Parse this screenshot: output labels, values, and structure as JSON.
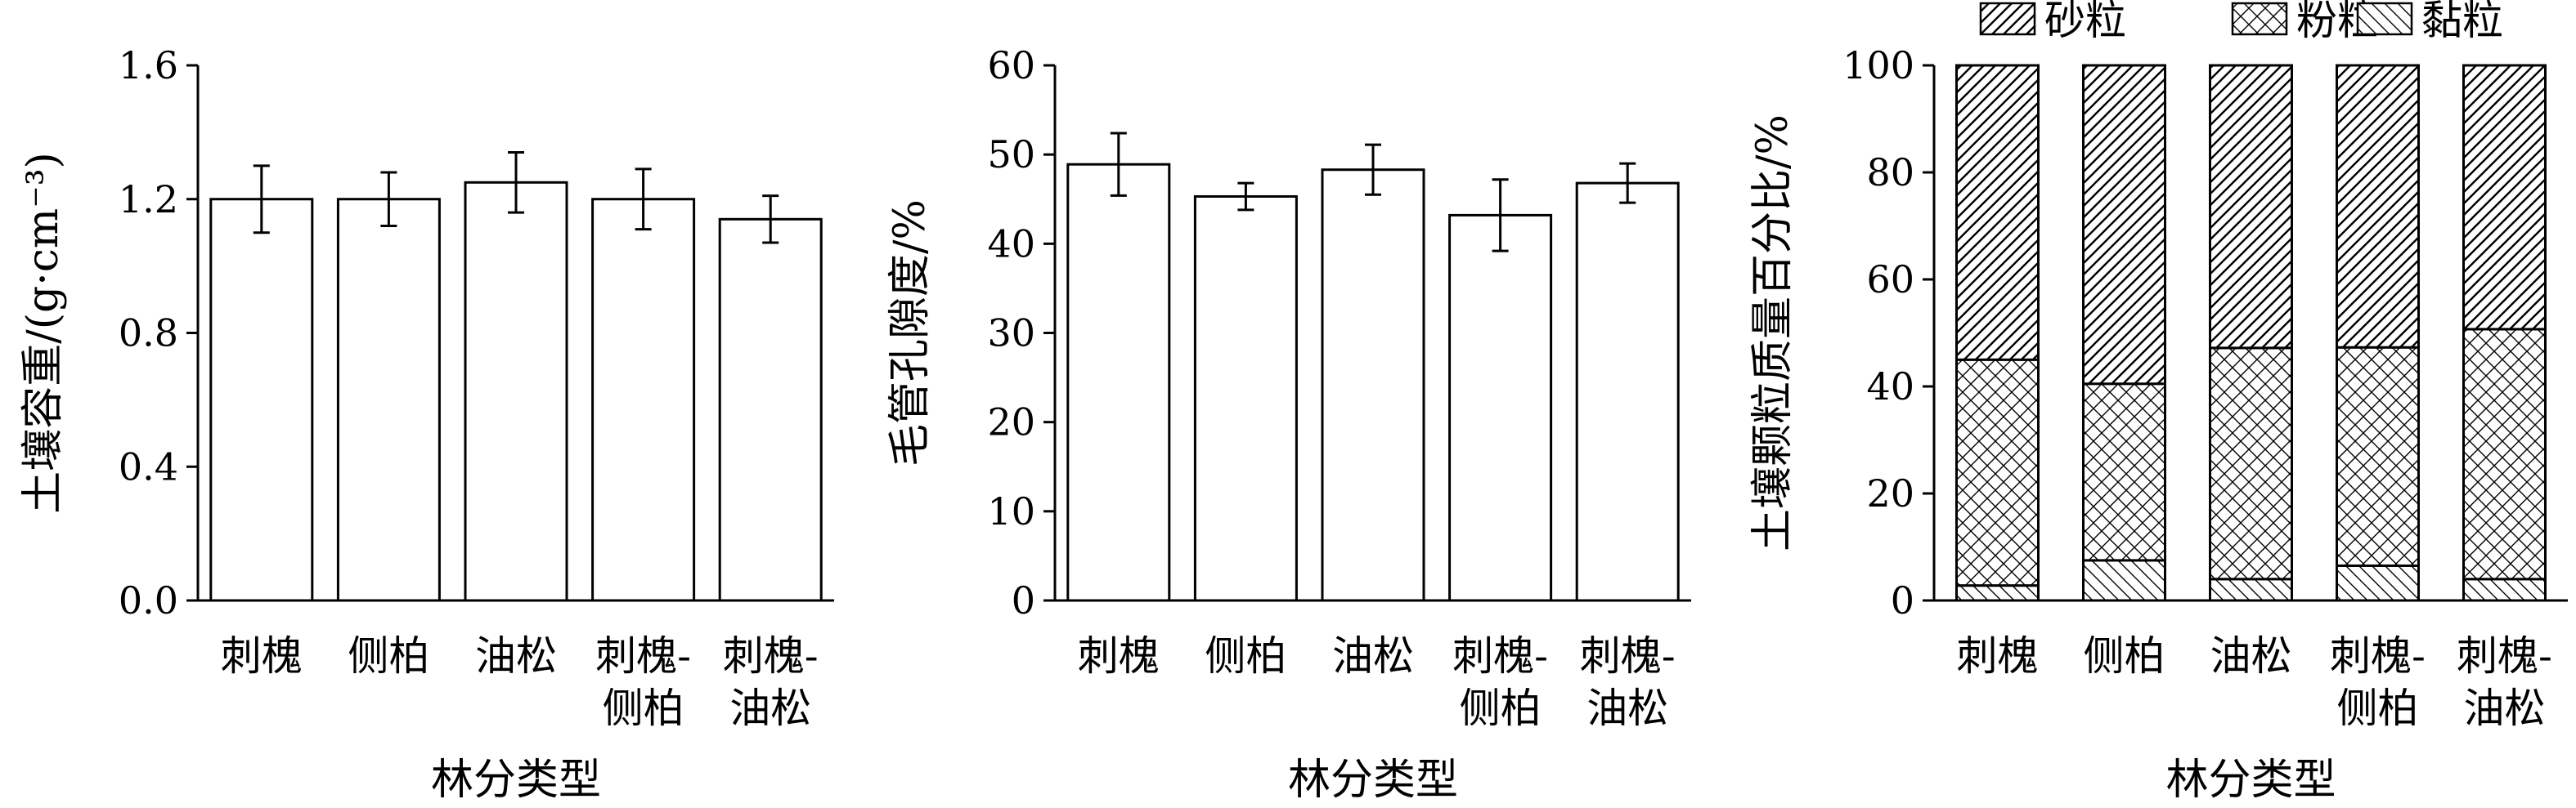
{
  "chart_data": [
    {
      "type": "bar",
      "categories": [
        [
          "刺槐"
        ],
        [
          "侧柏"
        ],
        [
          "油松"
        ],
        [
          "刺槐-",
          "侧柏"
        ],
        [
          "刺槐-",
          "油松"
        ]
      ],
      "values": [
        1.2,
        1.2,
        1.25,
        1.2,
        1.14
      ],
      "errors": [
        0.1,
        0.08,
        0.09,
        0.09,
        0.07
      ],
      "xlabel": "林分类型",
      "ylabel": "土壤容重/(g·cm⁻³)",
      "ylim": [
        0,
        1.6
      ],
      "yticks": [
        "0.0",
        "0.4",
        "0.8",
        "1.2",
        "1.6"
      ]
    },
    {
      "type": "bar",
      "categories": [
        [
          "刺槐"
        ],
        [
          "侧柏"
        ],
        [
          "油松"
        ],
        [
          "刺槐-",
          "侧柏"
        ],
        [
          "刺槐-",
          "油松"
        ]
      ],
      "values": [
        48.9,
        45.3,
        48.3,
        43.2,
        46.8
      ],
      "errors": [
        3.5,
        1.5,
        2.8,
        4.0,
        2.2
      ],
      "xlabel": "林分类型",
      "ylabel": "毛管孔隙度/%",
      "ylim": [
        0,
        60
      ],
      "yticks": [
        "0",
        "10",
        "20",
        "30",
        "40",
        "50",
        "60"
      ]
    },
    {
      "type": "stacked_bar",
      "categories": [
        [
          "刺槐"
        ],
        [
          "侧柏"
        ],
        [
          "油松"
        ],
        [
          "刺槐-",
          "侧柏"
        ],
        [
          "刺槐-",
          "油松"
        ]
      ],
      "series": [
        {
          "name": "黏粒",
          "values": [
            2.8,
            7.5,
            4.0,
            6.5,
            4.0
          ]
        },
        {
          "name": "粉粒",
          "values": [
            42.2,
            33.0,
            43.2,
            40.8,
            46.7
          ]
        },
        {
          "name": "砂粒",
          "values": [
            55.0,
            59.5,
            52.8,
            52.7,
            49.3
          ]
        }
      ],
      "legend_order": [
        "砂粒",
        "粉粒",
        "黏粒"
      ],
      "legend_position": "top",
      "xlabel": "林分类型",
      "ylabel": "土壤颗粒质量百分比/%",
      "ylim": [
        0,
        100
      ],
      "yticks": [
        "0",
        "20",
        "40",
        "60",
        "80",
        "100"
      ]
    }
  ]
}
